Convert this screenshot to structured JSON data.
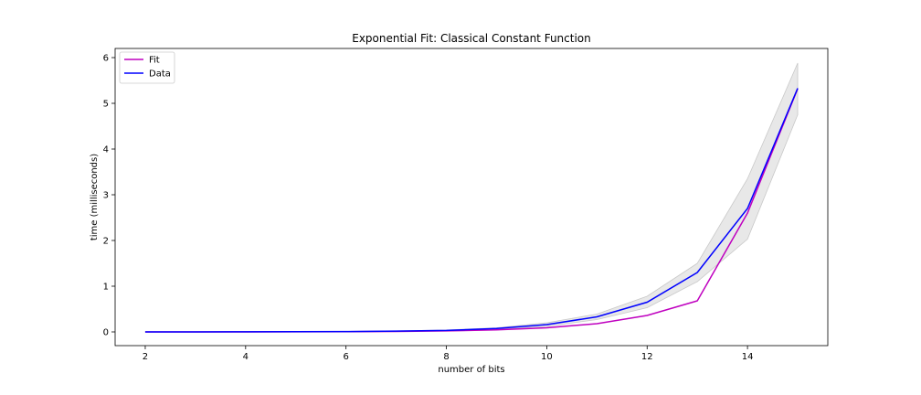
{
  "chart_data": {
    "type": "line",
    "title": "Exponential Fit: Classical Constant Function",
    "xlabel": "number of bits",
    "ylabel": "time (milliseconds)",
    "xlim": [
      1.4,
      15.6
    ],
    "ylim": [
      -0.3,
      6.2
    ],
    "xticks": [
      2,
      4,
      6,
      8,
      10,
      12,
      14
    ],
    "yticks": [
      0,
      1,
      2,
      3,
      4,
      5,
      6
    ],
    "grid": false,
    "legend_position": "top-left",
    "x": [
      2,
      3,
      4,
      5,
      6,
      7,
      8,
      9,
      10,
      11,
      12,
      13,
      14,
      15
    ],
    "series": [
      {
        "name": "Fit",
        "color": "#bf00bf",
        "values": [
          0.0003,
          0.0007,
          0.0013,
          0.0027,
          0.0055,
          0.011,
          0.022,
          0.045,
          0.09,
          0.18,
          0.36,
          0.68,
          2.6,
          5.32
        ]
      },
      {
        "name": "Data",
        "color": "#0000ff",
        "values": [
          0.0005,
          0.001,
          0.002,
          0.004,
          0.008,
          0.017,
          0.033,
          0.075,
          0.16,
          0.33,
          0.65,
          1.3,
          2.7,
          5.33
        ]
      }
    ],
    "band": {
      "color": "#d9d9d9",
      "lower": [
        0.0,
        0.0,
        0.0,
        0.002,
        0.005,
        0.012,
        0.025,
        0.06,
        0.12,
        0.27,
        0.53,
        1.1,
        2.03,
        4.75
      ],
      "upper": [
        0.001,
        0.002,
        0.004,
        0.006,
        0.011,
        0.022,
        0.042,
        0.09,
        0.2,
        0.39,
        0.78,
        1.5,
        3.35,
        5.88
      ]
    }
  }
}
